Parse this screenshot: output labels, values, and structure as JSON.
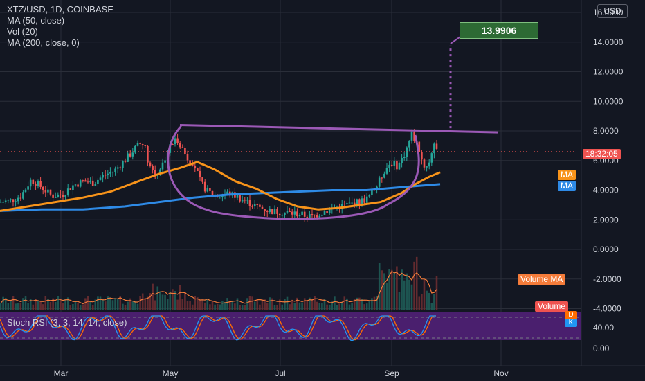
{
  "legend": {
    "symbol": "XTZ/USD, 1D, COINBASE",
    "ma50": "MA (50, close)",
    "vol": "Vol (20)",
    "ma200": "MA (200, close, 0)"
  },
  "currency": "USD",
  "target_label": "13.9906",
  "time_label": "18:32:05",
  "ma_tag": "MA",
  "ma_tag2": "MA",
  "volume_ma_tag": "Volume MA",
  "volume_tag": "Volume",
  "rsi_title": "Stoch RSI (3, 3, 14, 14, close)",
  "rsi_d": "D",
  "rsi_k": "K",
  "colors": {
    "background": "#131722",
    "grid": "#2a2e39",
    "up": "#26a69a",
    "down": "#ef5350",
    "ma50": "#f7931a",
    "ma200": "#2e8ae6",
    "pattern": "#9b59b6",
    "volume_ma": "#f57c3a",
    "rsi_bg": "#4a1f6e",
    "rsi_k": "#2196f3",
    "rsi_d": "#ff6d00"
  },
  "chart_data": {
    "type": "line",
    "title": "XTZ/USD, 1D, COINBASE",
    "x_ticks": [
      "Mar",
      "May",
      "Jul",
      "Sep",
      "Nov"
    ],
    "y_ticks": [
      "16.0000",
      "14.0000",
      "12.0000",
      "10.0000",
      "8.0000",
      "6.0000",
      "4.0000",
      "2.0000",
      "0.0000",
      "-2.0000",
      "-4.0000"
    ],
    "ylim": [
      -4.3,
      16.9
    ],
    "rsi_ticks": [
      "40.00",
      "0.00"
    ],
    "grid": true,
    "price_series": {
      "name": "XTZ/USD",
      "anchors_x": [
        0,
        15,
        30,
        45,
        60,
        75,
        90,
        105,
        120,
        135,
        150,
        165,
        180,
        195,
        207,
        215,
        225,
        235,
        245,
        255,
        262,
        270,
        280,
        290,
        300,
        315,
        330,
        350,
        370,
        390,
        410,
        430,
        450,
        470,
        490,
        510,
        530,
        545,
        555,
        565,
        575,
        585,
        595,
        605,
        612,
        620,
        628,
        632
      ],
      "anchors_y": [
        3.2,
        3.3,
        3.6,
        4.7,
        4.2,
        3.6,
        3.7,
        4.3,
        4.6,
        4.5,
        5.0,
        5.3,
        6.0,
        6.8,
        7.3,
        5.8,
        5.0,
        5.8,
        6.9,
        7.5,
        7.0,
        6.2,
        5.8,
        4.5,
        3.9,
        3.6,
        3.8,
        3.4,
        2.9,
        2.6,
        2.5,
        2.4,
        2.2,
        2.6,
        2.9,
        3.1,
        3.4,
        4.3,
        5.3,
        5.9,
        5.6,
        6.5,
        7.8,
        6.9,
        5.6,
        5.8,
        7.4,
        6.6
      ]
    },
    "ma50": {
      "name": "MA (50, close)",
      "x": [
        0,
        40,
        80,
        120,
        160,
        200,
        230,
        260,
        285,
        310,
        340,
        370,
        400,
        430,
        460,
        490,
        520,
        550,
        580,
        600,
        620,
        636
      ],
      "y": [
        2.6,
        2.9,
        3.2,
        3.5,
        3.9,
        4.6,
        5.1,
        5.5,
        5.9,
        5.4,
        4.6,
        4.1,
        3.4,
        2.9,
        2.7,
        2.8,
        3.0,
        3.2,
        3.8,
        4.4,
        4.9,
        5.2
      ]
    },
    "ma200": {
      "name": "MA (200, close, 0)",
      "x": [
        0,
        60,
        120,
        180,
        230,
        280,
        330,
        380,
        430,
        480,
        530,
        580,
        636
      ],
      "y": [
        2.6,
        2.7,
        2.7,
        2.9,
        3.2,
        3.5,
        3.7,
        3.8,
        3.9,
        4.0,
        4.0,
        4.2,
        4.4
      ]
    },
    "target": 13.9906,
    "last_price": 6.6
  }
}
